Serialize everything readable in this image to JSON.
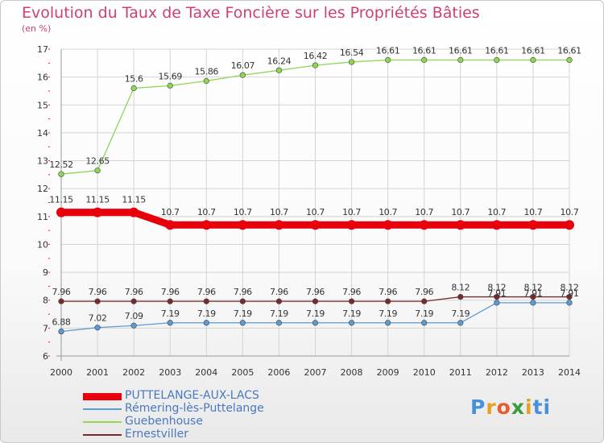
{
  "title": "Evolution du Taux de Taxe Foncière sur les Propriétés Bâties",
  "unit_label": "(en %)",
  "logo": {
    "text": "Proxiti",
    "letters": [
      "P",
      "r",
      "o",
      "x",
      "i",
      "t",
      "i"
    ],
    "colors": [
      "#4a90d9",
      "#e8a020",
      "#e65c2e",
      "#3a9c3a",
      "#e8a020",
      "#4a90d9",
      "#4a90d9"
    ]
  },
  "chart_data": {
    "type": "line",
    "title": "Evolution du Taux de Taxe Foncière sur les Propriétés Bâties",
    "ylabel": "(en %)",
    "xlabel": "",
    "categories": [
      "2000",
      "2001",
      "2002",
      "2003",
      "2004",
      "2005",
      "2006",
      "2007",
      "2008",
      "2009",
      "2010",
      "2011",
      "2012",
      "2013",
      "2014"
    ],
    "ylim": [
      6,
      17
    ],
    "yticks": [
      6,
      7,
      8,
      9,
      10,
      11,
      12,
      13,
      14,
      15,
      16,
      17
    ],
    "legend_position": "bottom-left",
    "series": [
      {
        "name": "PUTTELANGE-AUX-LACS",
        "color": "#e8000b",
        "thick": true,
        "values": [
          11.15,
          11.15,
          11.15,
          10.7,
          10.7,
          10.7,
          10.7,
          10.7,
          10.7,
          10.7,
          10.7,
          10.7,
          10.7,
          10.7,
          10.7
        ],
        "labels": [
          "11.15",
          "11.15",
          "11.15",
          "10.7",
          "10.7",
          "10.7",
          "10.7",
          "10.7",
          "10.7",
          "10.7",
          "10.7",
          "10.7",
          "10.7",
          "10.7",
          "10.7"
        ]
      },
      {
        "name": "Rémering-lès-Puttelange",
        "color": "#5b9bd5",
        "thick": false,
        "values": [
          6.88,
          7.02,
          7.09,
          7.19,
          7.19,
          7.19,
          7.19,
          7.19,
          7.19,
          7.19,
          7.19,
          7.19,
          7.91,
          7.91,
          7.91
        ],
        "labels": [
          "6.88",
          "7.02",
          "7.09",
          "7.19",
          "7.19",
          "7.19",
          "7.19",
          "7.19",
          "7.19",
          "7.19",
          "7.19",
          "7.19",
          "7.91",
          "7.91",
          "7.91"
        ]
      },
      {
        "name": "Guebenhouse",
        "color": "#8ed654",
        "thick": false,
        "values": [
          12.52,
          12.65,
          15.6,
          15.69,
          15.86,
          16.07,
          16.24,
          16.42,
          16.54,
          16.61,
          16.61,
          16.61,
          16.61,
          16.61,
          16.61
        ],
        "labels": [
          "12.52",
          "12.65",
          "15.6",
          "15.69",
          "15.86",
          "16.07",
          "16.24",
          "16.42",
          "16.54",
          "16.61",
          "16.61",
          "16.61",
          "16.61",
          "16.61",
          "16.61"
        ]
      },
      {
        "name": "Ernestviller",
        "color": "#7a2a2a",
        "thick": false,
        "values": [
          7.96,
          7.96,
          7.96,
          7.96,
          7.96,
          7.96,
          7.96,
          7.96,
          7.96,
          7.96,
          7.96,
          8.12,
          8.12,
          8.12,
          8.12
        ],
        "labels": [
          "7.96",
          "7.96",
          "7.96",
          "7.96",
          "7.96",
          "7.96",
          "7.96",
          "7.96",
          "7.96",
          "7.96",
          "7.96",
          "8.12",
          "8.12",
          "8.12",
          "8.12"
        ]
      }
    ]
  }
}
